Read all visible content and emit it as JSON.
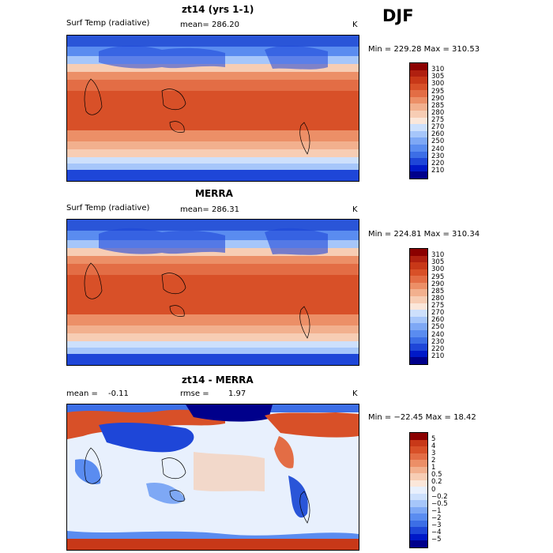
{
  "season": "DJF",
  "colors": {
    "temp_scale": [
      "#00008b",
      "#0019c8",
      "#1e46d8",
      "#3c6ee6",
      "#5a8cf0",
      "#7ea8f5",
      "#a6c6fa",
      "#cde0fc",
      "#fbe7da",
      "#f7cdb4",
      "#f2b08e",
      "#ec8f67",
      "#e36d45",
      "#d85028",
      "#c83818",
      "#b02010",
      "#8b0000"
    ],
    "diff_scale": [
      "#00008b",
      "#0019c8",
      "#1e46d8",
      "#3c6ee6",
      "#5a8cf0",
      "#7ea8f5",
      "#a6c6fa",
      "#cde0fc",
      "#e8f0fd",
      "#fbe7da",
      "#f7cdb4",
      "#f2b08e",
      "#ec8f67",
      "#e36d45",
      "#d85028",
      "#c83818",
      "#8b0000"
    ]
  },
  "panels": [
    {
      "id": "model",
      "title": "zt14 (yrs 1-1)",
      "left_label": "Surf Temp (radiative)",
      "mean_label": "mean=",
      "mean_value": "286.20",
      "units": "K",
      "minmax": "Min = 229.28 Max = 310.53",
      "colorbar_ticks": [
        "310",
        "305",
        "300",
        "295",
        "290",
        "285",
        "280",
        "275",
        "270",
        "260",
        "250",
        "240",
        "230",
        "220",
        "210"
      ]
    },
    {
      "id": "obs",
      "title": "MERRA",
      "left_label": "Surf Temp (radiative)",
      "mean_label": "mean=",
      "mean_value": "286.31",
      "units": "K",
      "minmax": "Min = 224.81 Max = 310.34",
      "colorbar_ticks": [
        "310",
        "305",
        "300",
        "295",
        "290",
        "285",
        "280",
        "275",
        "270",
        "260",
        "250",
        "240",
        "230",
        "220",
        "210"
      ]
    },
    {
      "id": "diff",
      "title": "zt14 - MERRA",
      "left_label": "mean =",
      "left_value": "-0.11",
      "rmse_label": "rmse =",
      "rmse_value": "1.97",
      "units": "K",
      "minmax": "Min = −22.45 Max =   18.42",
      "colorbar_ticks": [
        "5",
        "4",
        "3",
        "2",
        "1",
        "0.5",
        "0.2",
        "0",
        "−0.2",
        "−0.5",
        "−1",
        "−2",
        "−3",
        "−4",
        "−5"
      ]
    }
  ]
}
